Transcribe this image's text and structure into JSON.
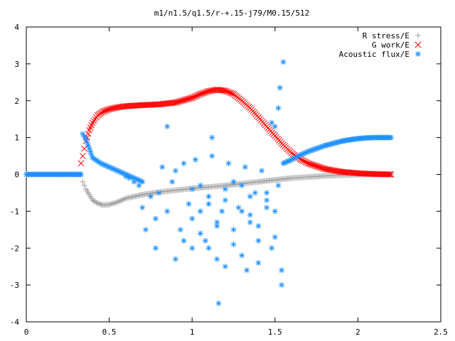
{
  "chart_data": {
    "type": "scatter",
    "title": "m1/n1.5/q1.5/r-+.15-j79/M0.15/512",
    "xlabel": "",
    "ylabel": "",
    "xlim": [
      0,
      2.5
    ],
    "ylim": [
      -4,
      4
    ],
    "x_ticks": [
      "0",
      "0.5",
      "1",
      "1.5",
      "2",
      "2.5"
    ],
    "y_ticks": [
      "4",
      "3",
      "2",
      "1",
      "0",
      "-1",
      "-2",
      "-3",
      "-4"
    ],
    "grid": false,
    "legend_position": "top-right",
    "series": [
      {
        "name": "R stress/E",
        "color": "#a0a0a0",
        "marker": "plus",
        "x": [
          0.34,
          0.36,
          0.38,
          0.4,
          0.43,
          0.46,
          0.5,
          0.55,
          0.6,
          0.7,
          0.8,
          0.9,
          1.0,
          1.1,
          1.2,
          1.3,
          1.4,
          1.5,
          1.6,
          1.7,
          1.8,
          1.9,
          2.0,
          2.1,
          2.2
        ],
        "values": [
          -0.2,
          -0.4,
          -0.55,
          -0.7,
          -0.78,
          -0.83,
          -0.82,
          -0.75,
          -0.65,
          -0.55,
          -0.48,
          -0.43,
          -0.38,
          -0.34,
          -0.3,
          -0.25,
          -0.2,
          -0.15,
          -0.1,
          -0.07,
          -0.04,
          -0.02,
          -0.01,
          0.0,
          0.0
        ]
      },
      {
        "name": "G work/E",
        "color": "#ff0000",
        "marker": "cross",
        "x": [
          0.33,
          0.34,
          0.36,
          0.38,
          0.4,
          0.43,
          0.46,
          0.5,
          0.55,
          0.6,
          0.7,
          0.8,
          0.9,
          1.0,
          1.05,
          1.1,
          1.15,
          1.2,
          1.25,
          1.3,
          1.35,
          1.4,
          1.45,
          1.5,
          1.55,
          1.6,
          1.65,
          1.7,
          1.8,
          1.9,
          2.0,
          2.1,
          2.2
        ],
        "values": [
          0.3,
          0.5,
          0.9,
          1.2,
          1.4,
          1.6,
          1.7,
          1.77,
          1.82,
          1.85,
          1.88,
          1.9,
          1.95,
          2.08,
          2.18,
          2.26,
          2.3,
          2.27,
          2.18,
          2.0,
          1.8,
          1.55,
          1.3,
          1.05,
          0.8,
          0.58,
          0.42,
          0.3,
          0.15,
          0.07,
          0.03,
          0.01,
          0.0
        ]
      },
      {
        "name": "Acoustic flux/E",
        "color": "#1e90ff",
        "marker": "star",
        "line_x": [
          0.0,
          0.05,
          0.1,
          0.15,
          0.2,
          0.25,
          0.3,
          0.33,
          0.34,
          0.36,
          0.38,
          0.4,
          0.45,
          0.5,
          0.55,
          0.6,
          0.65,
          0.7
        ],
        "line_y": [
          0.0,
          0.0,
          0.0,
          0.0,
          0.0,
          0.0,
          0.0,
          0.0,
          1.1,
          0.95,
          0.7,
          0.45,
          0.3,
          0.2,
          0.1,
          0.0,
          -0.1,
          -0.2
        ],
        "tail_x": [
          1.55,
          1.6,
          1.65,
          1.7,
          1.75,
          1.8,
          1.85,
          1.9,
          1.95,
          2.0,
          2.05,
          2.1,
          2.15,
          2.2
        ],
        "tail_y": [
          0.3,
          0.4,
          0.52,
          0.62,
          0.7,
          0.78,
          0.84,
          0.9,
          0.94,
          0.97,
          0.99,
          1.0,
          1.0,
          1.0
        ],
        "scatter_x": [
          0.8,
          0.82,
          0.85,
          0.88,
          0.9,
          0.93,
          0.95,
          0.98,
          1.0,
          1.02,
          1.05,
          1.08,
          1.1,
          1.12,
          1.15,
          1.18,
          1.2,
          1.22,
          1.25,
          1.28,
          1.3,
          1.32,
          1.35,
          1.38,
          1.4,
          1.42,
          1.45,
          1.48,
          1.5,
          1.52,
          1.54,
          1.55,
          0.75,
          0.78,
          0.72,
          0.7,
          0.68,
          0.65,
          0.62,
          0.6,
          1.0,
          1.05,
          1.1,
          1.15,
          1.2,
          1.25,
          1.3,
          1.35,
          1.4,
          1.45,
          1.5,
          0.9,
          0.95,
          1.0,
          1.05,
          1.1,
          1.15,
          1.2,
          1.25,
          1.3,
          1.35,
          1.4,
          1.45,
          1.16,
          1.33,
          1.52,
          1.53,
          1.54,
          1.48,
          1.5,
          0.78,
          0.85,
          1.12
        ],
        "scatter_y": [
          -0.5,
          0.2,
          -1.0,
          -0.2,
          0.1,
          -1.5,
          0.3,
          -0.8,
          -1.2,
          0.4,
          -0.3,
          -1.8,
          -0.6,
          0.5,
          -2.3,
          -1.0,
          -0.4,
          0.3,
          -1.5,
          -0.9,
          -2.2,
          0.2,
          -1.3,
          -0.5,
          -1.8,
          0.1,
          -0.7,
          -2.0,
          -1.0,
          -0.3,
          -2.6,
          3.05,
          -0.6,
          -1.2,
          -1.5,
          -0.9,
          -0.3,
          -0.2,
          -0.1,
          -0.05,
          -2.0,
          -1.6,
          -0.8,
          -1.4,
          -2.5,
          -0.2,
          -1.0,
          -0.6,
          -1.4,
          -0.9,
          -1.7,
          -2.3,
          -1.8,
          -0.4,
          -1.0,
          -2.0,
          -1.3,
          -0.7,
          -1.9,
          -0.3,
          -1.1,
          -2.4,
          -0.5,
          -3.5,
          -2.6,
          1.8,
          2.35,
          -3.0,
          1.4,
          1.3,
          -2.0,
          1.3,
          1.0
        ]
      }
    ]
  }
}
